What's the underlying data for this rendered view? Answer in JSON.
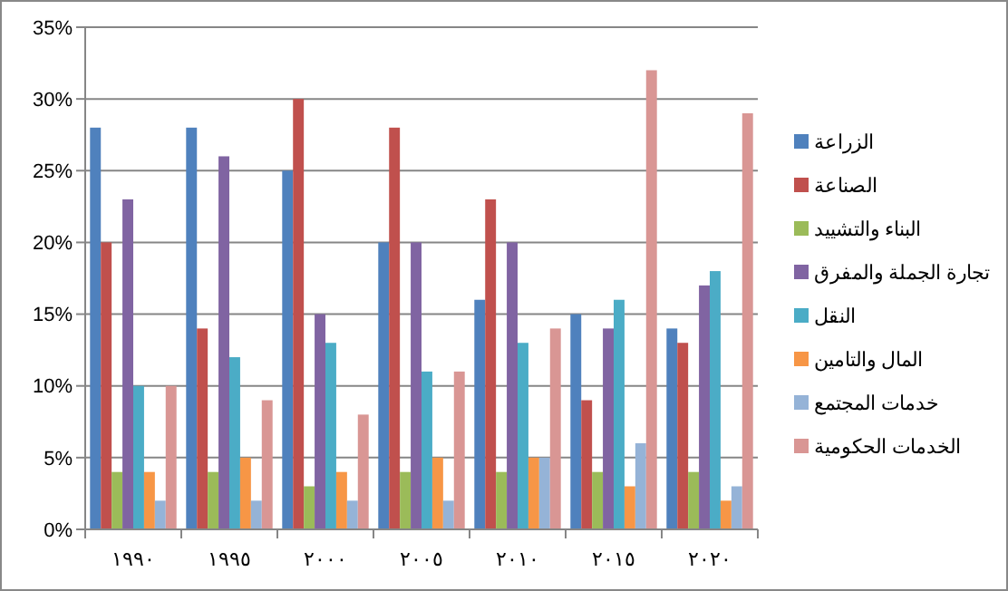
{
  "chart_data": {
    "type": "bar",
    "categories": [
      "١٩٩٠",
      "١٩٩٥",
      "٢٠٠٠",
      "٢٠٠٥",
      "٢٠١٠",
      "٢٠١٥",
      "٢٠٢٠"
    ],
    "series": [
      {
        "name": "الزراعة",
        "color": "#4f81bd",
        "values": [
          28,
          28,
          25,
          20,
          16,
          15,
          14
        ]
      },
      {
        "name": "الصناعة",
        "color": "#c0504d",
        "values": [
          20,
          14,
          30,
          28,
          23,
          9,
          13
        ]
      },
      {
        "name": "البناء والتشييد",
        "color": "#9bbb59",
        "values": [
          4,
          4,
          3,
          4,
          4,
          4,
          4
        ]
      },
      {
        "name": "تجارة الجملة والمفرق",
        "color": "#8064a2",
        "values": [
          23,
          26,
          15,
          20,
          20,
          14,
          17
        ]
      },
      {
        "name": "النقل",
        "color": "#4bacc6",
        "values": [
          10,
          12,
          13,
          11,
          13,
          16,
          18
        ]
      },
      {
        "name": "المال والتامين",
        "color": "#f79646",
        "values": [
          4,
          5,
          4,
          5,
          5,
          3,
          2
        ]
      },
      {
        "name": "خدمات المجتمع",
        "color": "#95b3d7",
        "values": [
          2,
          2,
          2,
          2,
          5,
          6,
          3
        ]
      },
      {
        "name": "الخدمات الحكومية",
        "color": "#d99694",
        "values": [
          10,
          9,
          8,
          11,
          14,
          32,
          29
        ]
      }
    ],
    "ylim": [
      0,
      35
    ],
    "yticks": [
      {
        "value": 0,
        "label": "0%"
      },
      {
        "value": 5,
        "label": "5%"
      },
      {
        "value": 10,
        "label": "10%"
      },
      {
        "value": 15,
        "label": "15%"
      },
      {
        "value": 20,
        "label": "20%"
      },
      {
        "value": 25,
        "label": "25%"
      },
      {
        "value": 30,
        "label": "30%"
      },
      {
        "value": 35,
        "label": "35%"
      }
    ],
    "grid": "y",
    "legend": "right"
  }
}
